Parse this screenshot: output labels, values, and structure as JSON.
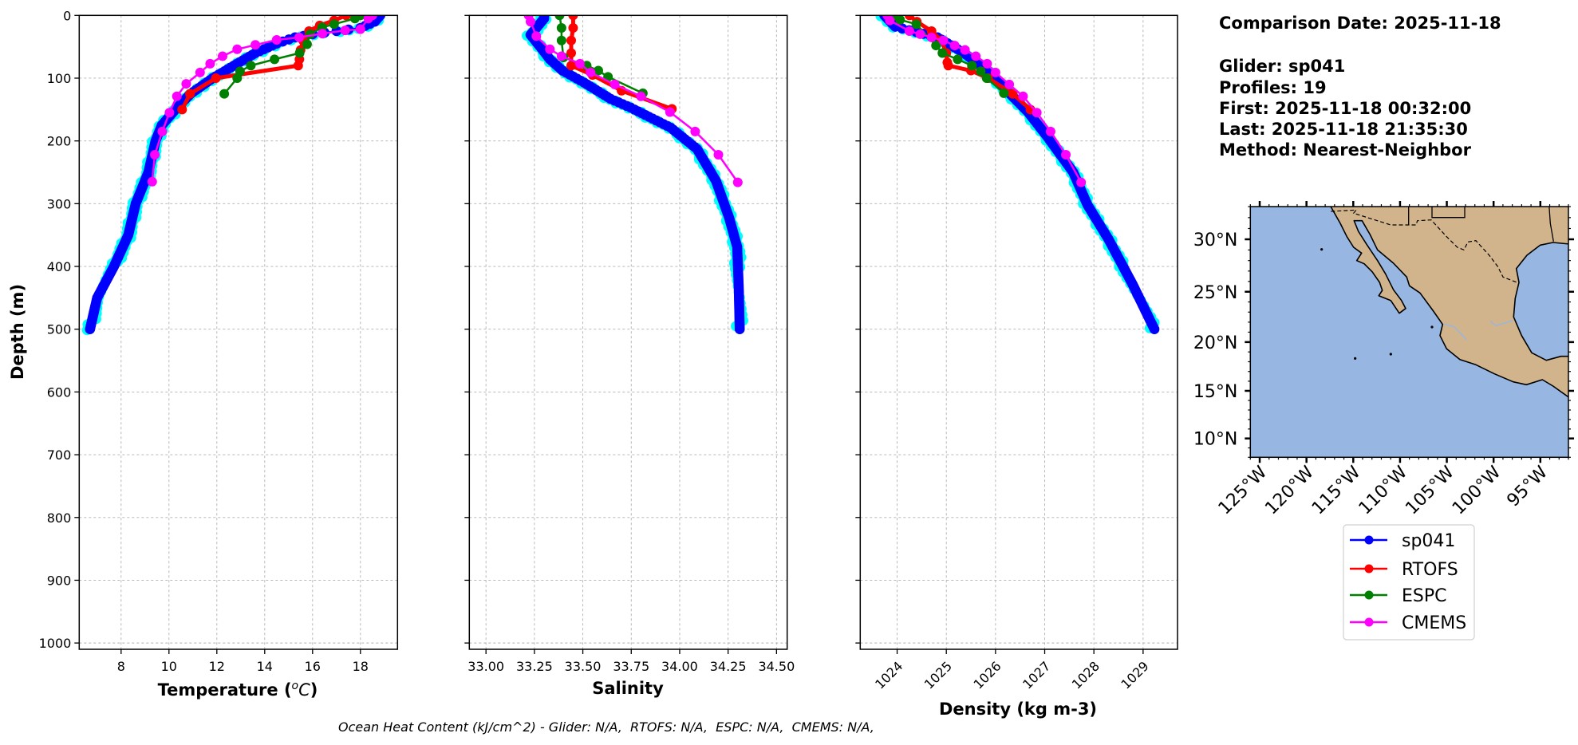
{
  "info": {
    "comparison_date": "Comparison Date: 2025-11-18",
    "glider": "Glider: sp041",
    "profiles": "Profiles: 19",
    "first": "First: 2025-11-18 00:32:00",
    "last": "Last: 2025-11-18 21:35:30",
    "method": "Method: Nearest-Neighbor"
  },
  "footer": "Ocean Heat Content (kJ/cm^2) - Glider: N/A,  RTOFS: N/A,  ESPC: N/A,  CMEMS: N/A,",
  "ylabel": "Depth (m)",
  "colors": {
    "sp041": "#0000ff",
    "sp041_profiles": "#00ffff",
    "RTOFS": "#ff0000",
    "ESPC": "#008000",
    "CMEMS": "#ff00ff"
  },
  "chart_data": [
    {
      "type": "line",
      "xlabel": {
        "text": "Temperature (",
        "sup": "o",
        "unit": "C",
        "close": ")"
      },
      "ylabel": "Depth (m)",
      "xlim": [
        6.25,
        19.55
      ],
      "ylim": [
        1010,
        0
      ],
      "y_inverted": true,
      "grid": true,
      "xticks": [
        "8",
        "10",
        "12",
        "14",
        "16",
        "18"
      ],
      "yticks": [
        "0",
        "100",
        "200",
        "300",
        "400",
        "500",
        "600",
        "700",
        "800",
        "900",
        "1000"
      ],
      "series": [
        {
          "name": "sp041",
          "depth": [
            0,
            10,
            20,
            25,
            30,
            35,
            45,
            60,
            80,
            100,
            125,
            150,
            175,
            200,
            250,
            300,
            350,
            400,
            450,
            500
          ],
          "values": [
            18.83,
            18.6,
            18.0,
            17.0,
            16.0,
            15.27,
            14.5,
            13.61,
            12.71,
            11.83,
            10.9,
            10.27,
            9.7,
            9.44,
            9.14,
            8.61,
            8.3,
            7.7,
            7.0,
            6.7
          ]
        },
        {
          "name": "RTOFS",
          "depth": [
            0,
            8,
            16,
            25,
            40,
            55,
            70,
            80,
            100,
            125,
            150
          ],
          "values": [
            17.4,
            16.9,
            16.3,
            15.85,
            15.6,
            15.5,
            15.45,
            15.4,
            11.96,
            10.88,
            10.55
          ]
        },
        {
          "name": "ESPC",
          "depth": [
            0,
            5,
            14,
            19,
            30,
            46,
            60,
            70,
            80,
            89,
            100,
            125
          ],
          "values": [
            18.0,
            17.77,
            16.9,
            16.4,
            15.9,
            15.77,
            15.46,
            14.41,
            13.42,
            12.97,
            12.85,
            12.31
          ]
        },
        {
          "name": "CMEMS",
          "depth": [
            0,
            5,
            22,
            24,
            29,
            35,
            39,
            47,
            54,
            65,
            77,
            91,
            109,
            129,
            155,
            185,
            222,
            265
          ],
          "values": [
            18.5,
            18.33,
            18.0,
            17.36,
            16.41,
            15.44,
            14.5,
            13.61,
            12.85,
            12.24,
            11.72,
            11.3,
            10.72,
            10.33,
            10.02,
            9.72,
            9.41,
            9.3
          ]
        }
      ]
    },
    {
      "type": "line",
      "xlabel": {
        "text": "Salinity"
      },
      "xlim": [
        32.914,
        34.555
      ],
      "ylim": [
        1010,
        0
      ],
      "y_inverted": true,
      "grid": true,
      "xticks": [
        "33.00",
        "33.25",
        "33.50",
        "33.75",
        "34.00",
        "34.25",
        "34.50"
      ],
      "series": [
        {
          "name": "sp041",
          "depth": [
            0,
            5,
            20,
            31,
            52,
            70,
            88,
            107,
            133,
            147,
            179,
            213,
            264,
            323,
            369,
            433,
            500
          ],
          "values": [
            33.3,
            33.3,
            33.26,
            33.23,
            33.285,
            33.33,
            33.395,
            33.506,
            33.643,
            33.747,
            33.954,
            34.09,
            34.188,
            34.256,
            34.297,
            34.305,
            34.31
          ]
        },
        {
          "name": "RTOFS",
          "depth": [
            0,
            20,
            40,
            60,
            80,
            95,
            120,
            149
          ],
          "values": [
            33.45,
            33.45,
            33.44,
            33.44,
            33.44,
            33.55,
            33.7,
            33.96
          ]
        },
        {
          "name": "ESPC",
          "depth": [
            0,
            20,
            40,
            67,
            80,
            88,
            98,
            124
          ],
          "values": [
            33.38,
            33.39,
            33.39,
            33.4,
            33.52,
            33.58,
            33.63,
            33.81
          ]
        },
        {
          "name": "CMEMS",
          "depth": [
            0,
            10,
            33,
            54,
            65,
            77,
            91,
            110,
            129,
            154,
            185,
            222,
            266
          ],
          "values": [
            33.22,
            33.23,
            33.26,
            33.33,
            33.39,
            33.485,
            33.54,
            33.665,
            33.8,
            33.95,
            34.08,
            34.2,
            34.3
          ]
        }
      ]
    },
    {
      "type": "line",
      "xlabel": {
        "text": "Density (kg m-3)"
      },
      "xlim": [
        1023.25,
        1029.7
      ],
      "ylim": [
        1010,
        0
      ],
      "y_inverted": true,
      "grid": true,
      "xticks": [
        "1024",
        "1025",
        "1026",
        "1027",
        "1028",
        "1029"
      ],
      "series": [
        {
          "name": "sp041",
          "depth": [
            0,
            18,
            35,
            60,
            86,
            120,
            154,
            192,
            250,
            302,
            357,
            429,
            500
          ],
          "values": [
            1023.74,
            1023.96,
            1024.82,
            1025.36,
            1025.79,
            1026.23,
            1026.66,
            1027.04,
            1027.58,
            1027.87,
            1028.3,
            1028.79,
            1029.23
          ]
        },
        {
          "name": "RTOFS",
          "depth": [
            0,
            10,
            25,
            40,
            60,
            75,
            80,
            88,
            100,
            125,
            150
          ],
          "values": [
            1024.25,
            1024.4,
            1024.7,
            1024.9,
            1025.0,
            1025.02,
            1025.04,
            1025.5,
            1025.85,
            1026.35,
            1026.71
          ]
        },
        {
          "name": "ESPC",
          "depth": [
            0,
            7,
            14,
            48,
            60,
            70,
            80,
            89,
            100,
            124
          ],
          "values": [
            1023.95,
            1024.06,
            1024.39,
            1024.79,
            1024.92,
            1025.23,
            1025.52,
            1025.7,
            1025.82,
            1026.17
          ]
        },
        {
          "name": "CMEMS",
          "depth": [
            0,
            8,
            25,
            30,
            35,
            40,
            48,
            55,
            65,
            77,
            91,
            110,
            129,
            155,
            185,
            222,
            266
          ],
          "values": [
            1023.8,
            1023.85,
            1024.25,
            1024.47,
            1024.7,
            1024.94,
            1025.17,
            1025.38,
            1025.6,
            1025.83,
            1026.0,
            1026.28,
            1026.56,
            1026.84,
            1027.12,
            1027.43,
            1027.74
          ]
        }
      ]
    }
  ],
  "map": {
    "lon_extent": [
      -126.0,
      -92.0
    ],
    "lat_extent": [
      8.0,
      33.0
    ],
    "lon_ticks": [
      {
        "value": -125,
        "label": "125°W"
      },
      {
        "value": -120,
        "label": "120°W"
      },
      {
        "value": -115,
        "label": "115°W"
      },
      {
        "value": -110,
        "label": "110°W"
      },
      {
        "value": -105,
        "label": "105°W"
      },
      {
        "value": -100,
        "label": "100°W"
      },
      {
        "value": -95,
        "label": "95°W"
      }
    ],
    "lat_ticks": [
      {
        "value": 30,
        "label": "30°N"
      },
      {
        "value": 25,
        "label": "25°N"
      },
      {
        "value": 20,
        "label": "20°N"
      },
      {
        "value": 15,
        "label": "15°N"
      },
      {
        "value": 10,
        "label": "10°N"
      }
    ],
    "ocean_color": "#97b6e1",
    "land_color": "#d2b48c"
  }
}
